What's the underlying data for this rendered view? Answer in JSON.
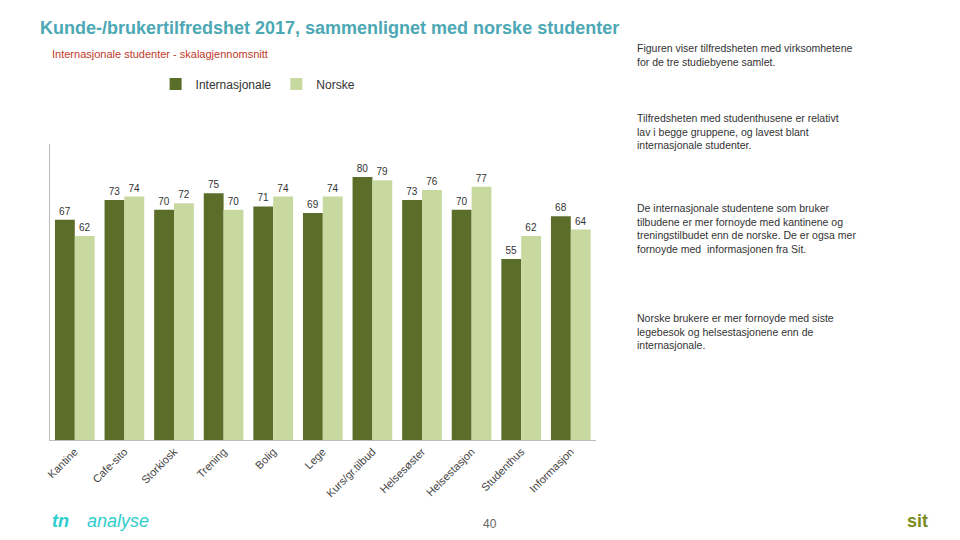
{
  "chart_data": {
    "type": "bar",
    "title": "Kunde-/brukertilfredshet 2017, sammenlignet med norske studenter",
    "subtitle": "Internasjonale studenter - skalagjennomsnitt",
    "categories": [
      "Kantine",
      "Cafe-sito",
      "Storkiosk",
      "Trening",
      "Bolig",
      "Lege",
      "Kurs/gr.tilbud",
      "Helsesøster",
      "Helsestasjon",
      "Studenthus",
      "Informasjon"
    ],
    "series": [
      {
        "name": "Internasjonale",
        "color": "#5a6e2a",
        "values": [
          67,
          73,
          70,
          75,
          71,
          69,
          80,
          73,
          70,
          55,
          68
        ]
      },
      {
        "name": "Norske",
        "color": "#c8d9a0",
        "values": [
          62,
          74,
          72,
          70,
          74,
          74,
          79,
          76,
          77,
          62,
          64
        ]
      }
    ],
    "ylim": [
      0,
      90
    ],
    "data_labels": true,
    "tick_labels": "x",
    "grid": false,
    "legend": "top",
    "annotations": [
      "Figuren viser tilfredsheten med virksomhetene\nfor de tre studiebyene samlet.",
      "Tilfredsheten med studenthusene er relativt\nlav i begge gruppene, og lavest blant\ninternasjonale studenter.",
      "De internasjonale studentene som bruker\ntilbudene er mer fornoyde med kantinene og\ntreningstilbudet enn de norske. De er ogsa mer\nfornoyde med  informasjonen fra Sit.",
      "Norske brukere er mer fornoyde med siste\nlegebesok og helsestasjonene enn de\ninternasjonale.",
      "40",
      "tn",
      "analyse",
      "sit"
    ]
  }
}
